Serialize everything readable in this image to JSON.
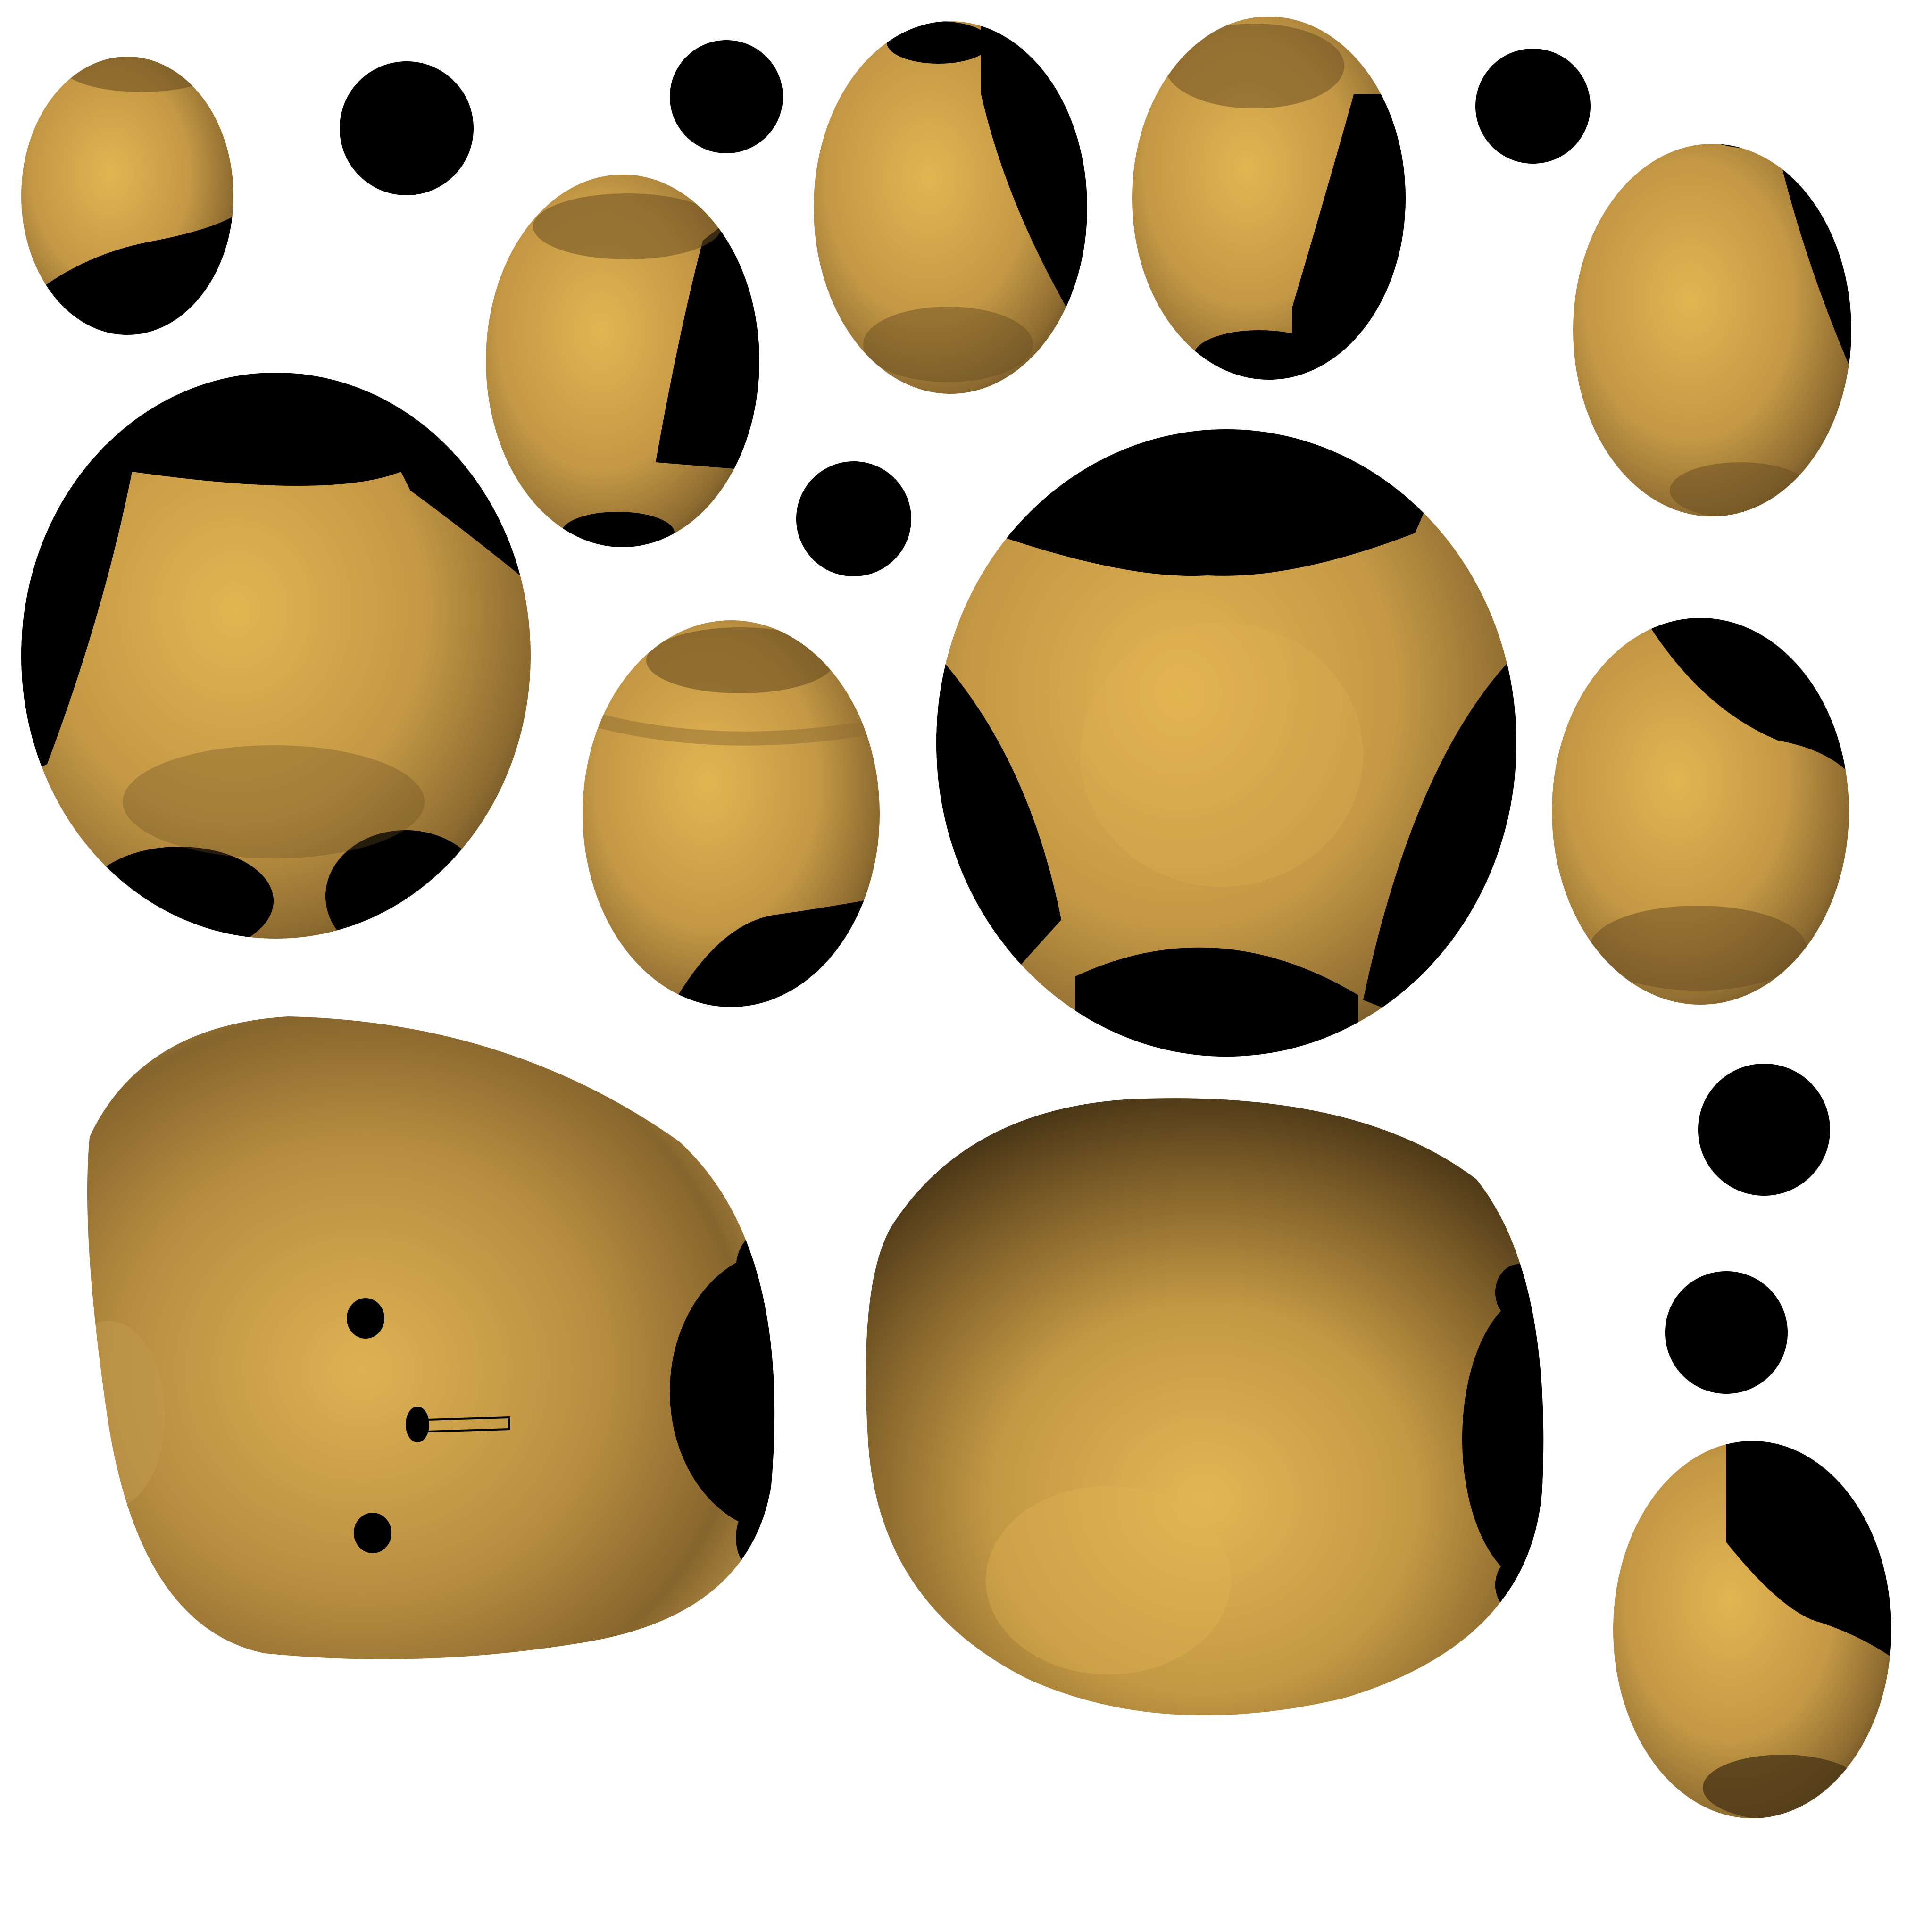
{
  "palette": {
    "background": "#ffffff",
    "gold_light": "#e2b552",
    "gold_mid": "#c49845",
    "gold_dark": "#8e6c31",
    "gold_deep": "#5e4520",
    "shadow": "#000000"
  },
  "canvas": {
    "title": "",
    "element_count": 21
  }
}
